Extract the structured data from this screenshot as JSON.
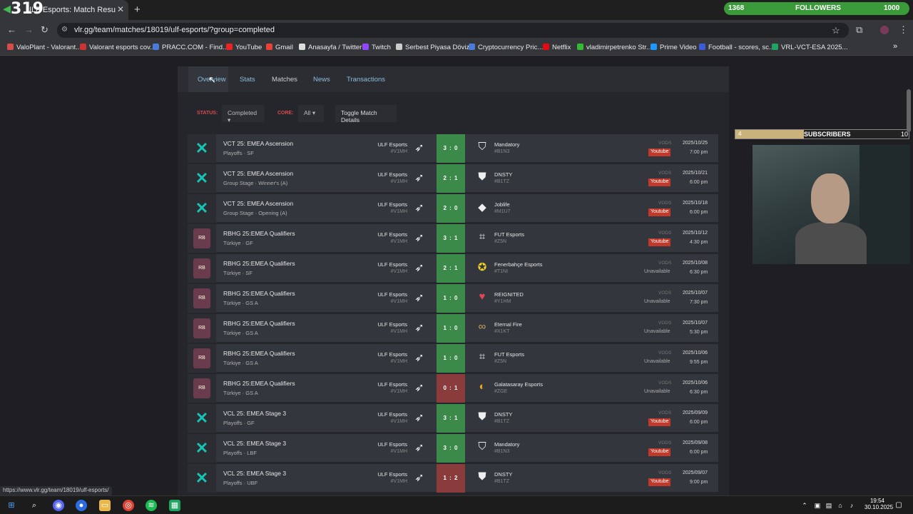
{
  "browser": {
    "tab_title": "ULF Esports: Match Results | VLR",
    "url": "vlr.gg/team/matches/18019/ulf-esports/?group=completed",
    "status_url": "https://www.vlr.gg/team/18019/ulf-esports/"
  },
  "overlay": {
    "count": "319",
    "followers_start": "1368",
    "followers_label": "FOLLOWERS",
    "followers_goal": "1000",
    "subs_start": "4",
    "subs_label": "SUBSCRIBERS",
    "subs_goal": "10"
  },
  "bookmarks": [
    "ValoPlant - Valorant...",
    "Valorant esports cov...",
    "PRACC.COM - Find...",
    "YouTube",
    "Gmail",
    "Anasayfa / Twitter",
    "Twitch",
    "Serbest Piyasa Döviz...",
    "Cryptocurrency Pric...",
    "Netflix",
    "vladimirpetrenko Str...",
    "Prime Video",
    "Football - scores, sc...",
    "VRL-VCT-ESA 2025..."
  ],
  "page_tabs": [
    "Overview",
    "Stats",
    "Matches",
    "News",
    "Transactions"
  ],
  "filters": {
    "status_label": "STATUS:",
    "status_value": "Completed",
    "core_label": "CORE:",
    "core_value": "All",
    "toggle_label": "Toggle Match Details"
  },
  "matches": [
    {
      "event": "VCT 25: EMEA Ascension",
      "stage": "Playoffs · SF",
      "team1": "ULF Esports",
      "tag1": "#V1MH",
      "score": "3 : 0",
      "team2": "Mandatory",
      "tag2": "#B1N3",
      "vod": "Youtube",
      "date": "2025/10/25",
      "time": "7:00 pm",
      "icon": "vct",
      "result": "win"
    },
    {
      "event": "VCT 25: EMEA Ascension",
      "stage": "Group Stage · Winner's (A)",
      "team1": "ULF Esports",
      "tag1": "#V1MH",
      "score": "2 : 1",
      "team2": "DNSTY",
      "tag2": "#B1TZ",
      "vod": "Youtube",
      "date": "2025/10/21",
      "time": "6:00 pm",
      "icon": "vct",
      "result": "win"
    },
    {
      "event": "VCT 25: EMEA Ascension",
      "stage": "Group Stage · Opening (A)",
      "team1": "ULF Esports",
      "tag1": "#V1MH",
      "score": "2 : 0",
      "team2": "Joblife",
      "tag2": "#M1U7",
      "vod": "Youtube",
      "date": "2025/10/18",
      "time": "6:00 pm",
      "icon": "vct",
      "result": "win"
    },
    {
      "event": "RBHG 25:EMEA Qualifiers",
      "stage": "Türkiye · GF",
      "team1": "ULF Esports",
      "tag1": "#V1MH",
      "score": "3 : 1",
      "team2": "FUT Esports",
      "tag2": "#Z5N",
      "vod": "Youtube",
      "date": "2025/10/12",
      "time": "4:30 pm",
      "icon": "rbhg",
      "result": "win"
    },
    {
      "event": "RBHG 25:EMEA Qualifiers",
      "stage": "Türkiye · SF",
      "team1": "ULF Esports",
      "tag1": "#V1MH",
      "score": "2 : 1",
      "team2": "Fenerbahçe Esports",
      "tag2": "#T1NI",
      "vod": "Unavailable",
      "date": "2025/10/08",
      "time": "6:30 pm",
      "icon": "rbhg",
      "result": "win"
    },
    {
      "event": "RBHG 25:EMEA Qualifiers",
      "stage": "Türkiye · GS A",
      "team1": "ULF Esports",
      "tag1": "#V1MH",
      "score": "1 : 0",
      "team2": "REIGNITED",
      "tag2": "#Y1HM",
      "vod": "Unavailable",
      "date": "2025/10/07",
      "time": "7:30 pm",
      "icon": "rbhg",
      "result": "win"
    },
    {
      "event": "RBHG 25:EMEA Qualifiers",
      "stage": "Türkiye · GS A",
      "team1": "ULF Esports",
      "tag1": "#V1MH",
      "score": "1 : 0",
      "team2": "Eternal Fire",
      "tag2": "#X1KT",
      "vod": "Unavailable",
      "date": "2025/10/07",
      "time": "5:30 pm",
      "icon": "rbhg",
      "result": "win"
    },
    {
      "event": "RBHG 25:EMEA Qualifiers",
      "stage": "Türkiye · GS A",
      "team1": "ULF Esports",
      "tag1": "#V1MH",
      "score": "1 : 0",
      "team2": "FUT Esports",
      "tag2": "#Z5N",
      "vod": "Unavailable",
      "date": "2025/10/06",
      "time": "9:55 pm",
      "icon": "rbhg",
      "result": "win"
    },
    {
      "event": "RBHG 25:EMEA Qualifiers",
      "stage": "Türkiye · GS A",
      "team1": "ULF Esports",
      "tag1": "#V1MH",
      "score": "0 : 1",
      "team2": "Galatasaray Esports",
      "tag2": "#ZGE",
      "vod": "Unavailable",
      "date": "2025/10/06",
      "time": "6:30 pm",
      "icon": "rbhg",
      "result": "loss"
    },
    {
      "event": "VCL 25: EMEA Stage 3",
      "stage": "Playoffs · GF",
      "team1": "ULF Esports",
      "tag1": "#V1MH",
      "score": "3 : 1",
      "team2": "DNSTY",
      "tag2": "#B1TZ",
      "vod": "Youtube",
      "date": "2025/09/09",
      "time": "6:00 pm",
      "icon": "vct",
      "result": "win"
    },
    {
      "event": "VCL 25: EMEA Stage 3",
      "stage": "Playoffs · LBF",
      "team1": "ULF Esports",
      "tag1": "#V1MH",
      "score": "3 : 0",
      "team2": "Mandatory",
      "tag2": "#B1N3",
      "vod": "Youtube",
      "date": "2025/09/08",
      "time": "6:00 pm",
      "icon": "vct",
      "result": "win"
    },
    {
      "event": "VCL 25: EMEA Stage 3",
      "stage": "Playoffs · UBF",
      "team1": "ULF Esports",
      "tag1": "#V1MH",
      "score": "1 : 2",
      "team2": "DNSTY",
      "tag2": "#B1TZ",
      "vod": "Youtube",
      "date": "2025/09/07",
      "time": "9:00 pm",
      "icon": "vct",
      "result": "loss"
    }
  ],
  "vods_label": "VODS",
  "taskbar": {
    "time": "19:54",
    "date": "30.10.2025"
  }
}
